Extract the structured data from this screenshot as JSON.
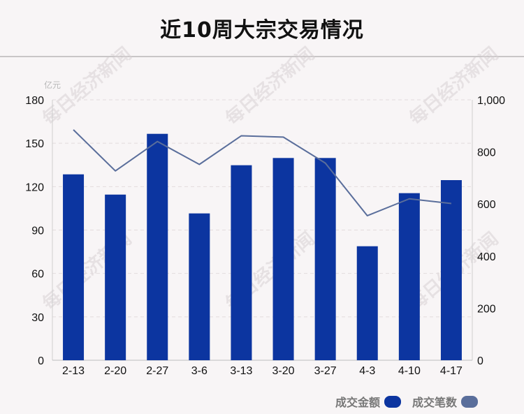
{
  "chart_data": {
    "type": "bar",
    "title": "近10周大宗交易情况",
    "categories": [
      "2-13",
      "2-20",
      "2-27",
      "3-6",
      "3-13",
      "3-20",
      "3-27",
      "4-3",
      "4-10",
      "4-17"
    ],
    "series": [
      {
        "name": "成交金额",
        "type": "bar",
        "axis": "left",
        "color": "#0c35a0",
        "values": [
          128.5,
          114.5,
          156.5,
          101.5,
          134.8,
          139.8,
          139.8,
          78.8,
          115.5,
          124.5
        ]
      },
      {
        "name": "成交笔数",
        "type": "line",
        "axis": "right",
        "color": "#5a6e9b",
        "values": [
          885,
          727,
          840,
          752,
          862,
          857,
          757,
          555,
          620,
          602
        ]
      }
    ],
    "y_left": {
      "unit": "亿元",
      "ylim": [
        0,
        180
      ],
      "ticks": [
        "0",
        "30",
        "60",
        "90",
        "120",
        "150",
        "180"
      ]
    },
    "y_right": {
      "ylim": [
        0,
        1000
      ],
      "ticks": [
        "0",
        "200",
        "400",
        "600",
        "800",
        "1,000"
      ]
    },
    "grid": true,
    "legend_position": "bottom-right"
  },
  "watermark": "每日经济新闻"
}
